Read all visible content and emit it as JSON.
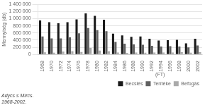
{
  "chart_data": {
    "type": "bar",
    "subtitle": [
      "Adycs s Mírcs.",
      "1968-2002."
    ],
    "y_label": "Mennyiség (db)",
    "categories": [
      "1968",
      "1970",
      "1972",
      "1974",
      "1976",
      "1978",
      "1980",
      "1982",
      "1984",
      "1986",
      "1988",
      "1990",
      "1992",
      "1994",
      "1996",
      "1998",
      "2000",
      "2002"
    ],
    "series": [
      {
        "name": "Becslés",
        "color": "#1a1a1a",
        "values": [
          950000,
          900000,
          870000,
          900000,
          980000,
          1150000,
          1080000,
          970000,
          580000,
          530000,
          490000,
          500000,
          440000,
          390000,
          400000,
          410000,
          310000,
          440000
        ]
      },
      {
        "name": "Terítéke",
        "color": "#606060",
        "values": [
          500000,
          450000,
          450000,
          480000,
          590000,
          740000,
          680000,
          650000,
          350000,
          300000,
          280000,
          270000,
          240000,
          220000,
          230000,
          220000,
          195000,
          250000
        ]
      },
      {
        "name": "Befogás",
        "color": "#aaaaaa",
        "values": [
          60000,
          50000,
          80000,
          90000,
          70000,
          180000,
          110000,
          90000,
          55000,
          45000,
          55000,
          50000,
          55000,
          55000,
          55000,
          65000,
          50000,
          65000
        ]
      }
    ],
    "legend_title": "(FT)",
    "legend": "bottom",
    "ylim": [
      0,
      1400000
    ],
    "yticks": [
      0,
      {
        "value": 200000,
        "label": "200 000"
      },
      {
        "value": 400000,
        "label": "400 000"
      },
      {
        "value": 600000,
        "label": "600 000"
      },
      {
        "value": 800000,
        "label": "800 000"
      },
      {
        "value": 1000000,
        "label": "1 000 000"
      },
      {
        "value": 1200000,
        "label": "1 200 000"
      },
      {
        "value": 1400000,
        "label": "1 400 000"
      }
    ],
    "grid": true
  }
}
